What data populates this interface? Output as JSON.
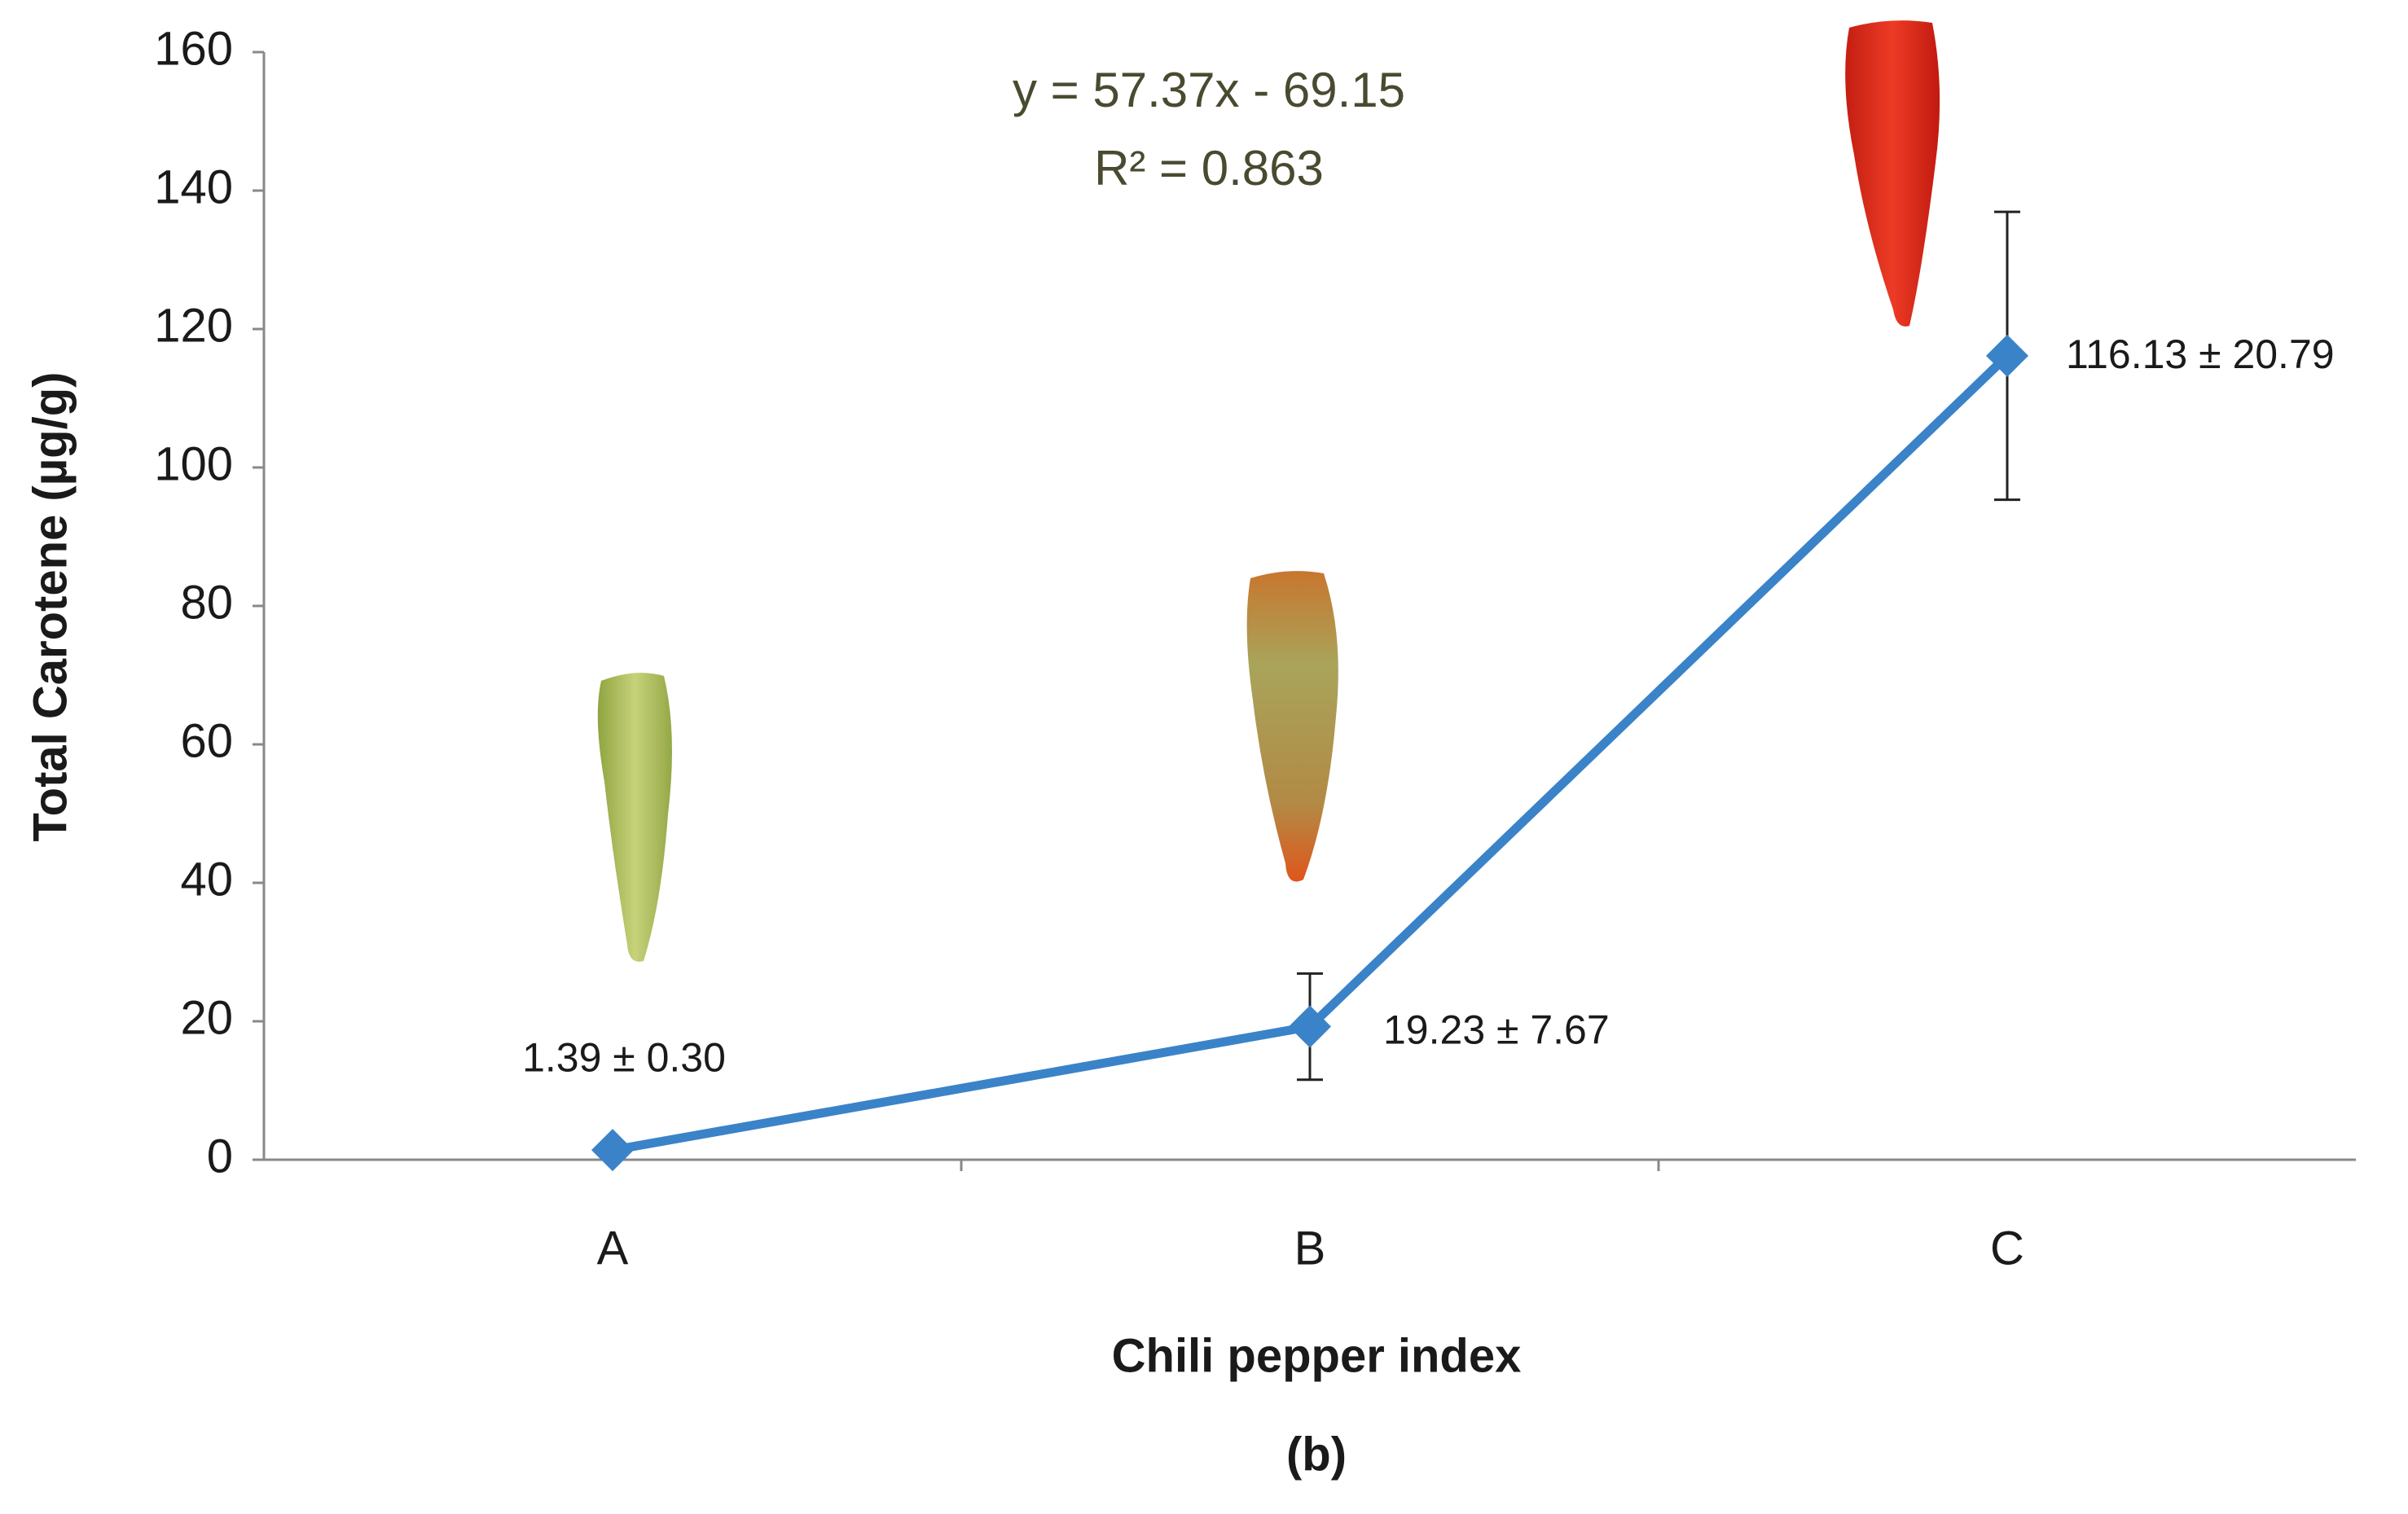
{
  "chart_data": {
    "type": "line",
    "annotations": [
      "y = 57.37x - 69.15",
      "R² = 0.863"
    ],
    "x_label": "Chili pepper index",
    "y_label": "Total Carotene (µg/g)",
    "caption": "(b)",
    "categories": [
      "A",
      "B",
      "C"
    ],
    "series": [
      {
        "color": "#3a83c8",
        "values": [
          1.39,
          19.23,
          116.13
        ],
        "errors": [
          0.3,
          7.67,
          20.79
        ],
        "value_labels": [
          "1.39 ± 0.30",
          "19.23 ± 7.67",
          "116.13 ± 20.79"
        ]
      }
    ],
    "ylim": [
      0,
      160
    ],
    "yticks": [
      0,
      20,
      40,
      60,
      80,
      100,
      120,
      140,
      160
    ],
    "grid": false
  }
}
